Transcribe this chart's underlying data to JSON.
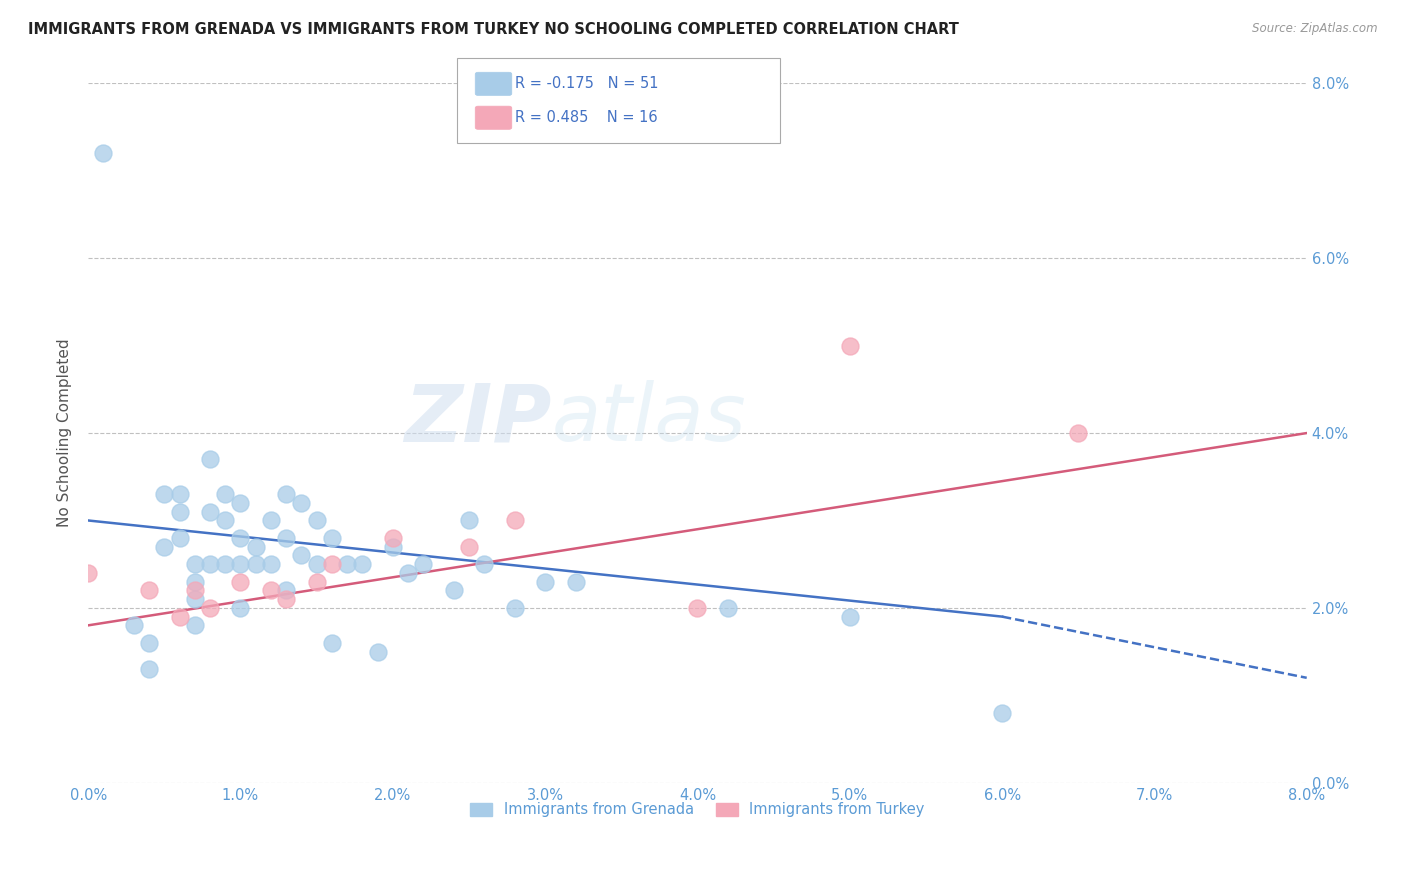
{
  "title": "IMMIGRANTS FROM GRENADA VS IMMIGRANTS FROM TURKEY NO SCHOOLING COMPLETED CORRELATION CHART",
  "source": "Source: ZipAtlas.com",
  "ylabel": "No Schooling Completed",
  "xlim": [
    0.0,
    0.08
  ],
  "ylim": [
    0.0,
    0.08
  ],
  "xticks": [
    0.0,
    0.01,
    0.02,
    0.03,
    0.04,
    0.05,
    0.06,
    0.07,
    0.08
  ],
  "yticks": [
    0.0,
    0.02,
    0.04,
    0.06,
    0.08
  ],
  "xtick_labels": [
    "0.0%",
    "1.0%",
    "2.0%",
    "3.0%",
    "4.0%",
    "5.0%",
    "6.0%",
    "7.0%",
    "8.0%"
  ],
  "ytick_labels": [
    "0.0%",
    "2.0%",
    "4.0%",
    "6.0%",
    "8.0%"
  ],
  "legend1_label": "Immigrants from Grenada",
  "legend2_label": "Immigrants from Turkey",
  "R_grenada": -0.175,
  "N_grenada": 51,
  "R_turkey": 0.485,
  "N_turkey": 16,
  "color_grenada": "#a8cce8",
  "color_turkey": "#f4a8b8",
  "color_trendline_grenada": "#4472c4",
  "color_trendline_turkey": "#d45b7a",
  "watermark_zip": "ZIP",
  "watermark_atlas": "atlas",
  "grenada_x": [
    0.001,
    0.003,
    0.004,
    0.004,
    0.005,
    0.005,
    0.006,
    0.006,
    0.006,
    0.007,
    0.007,
    0.007,
    0.007,
    0.008,
    0.008,
    0.008,
    0.009,
    0.009,
    0.009,
    0.01,
    0.01,
    0.01,
    0.01,
    0.011,
    0.011,
    0.012,
    0.012,
    0.013,
    0.013,
    0.013,
    0.014,
    0.014,
    0.015,
    0.015,
    0.016,
    0.016,
    0.017,
    0.018,
    0.019,
    0.02,
    0.021,
    0.022,
    0.024,
    0.025,
    0.026,
    0.028,
    0.03,
    0.032,
    0.042,
    0.05,
    0.06
  ],
  "grenada_y": [
    0.072,
    0.018,
    0.016,
    0.013,
    0.033,
    0.027,
    0.033,
    0.031,
    0.028,
    0.025,
    0.023,
    0.021,
    0.018,
    0.037,
    0.031,
    0.025,
    0.033,
    0.03,
    0.025,
    0.032,
    0.028,
    0.025,
    0.02,
    0.027,
    0.025,
    0.03,
    0.025,
    0.033,
    0.028,
    0.022,
    0.032,
    0.026,
    0.03,
    0.025,
    0.028,
    0.016,
    0.025,
    0.025,
    0.015,
    0.027,
    0.024,
    0.025,
    0.022,
    0.03,
    0.025,
    0.02,
    0.023,
    0.023,
    0.02,
    0.019,
    0.008
  ],
  "turkey_x": [
    0.0,
    0.004,
    0.006,
    0.007,
    0.008,
    0.01,
    0.012,
    0.013,
    0.015,
    0.016,
    0.02,
    0.025,
    0.028,
    0.04,
    0.05,
    0.065
  ],
  "turkey_y": [
    0.024,
    0.022,
    0.019,
    0.022,
    0.02,
    0.023,
    0.022,
    0.021,
    0.023,
    0.025,
    0.028,
    0.027,
    0.03,
    0.02,
    0.05,
    0.04
  ],
  "trendline_grenada_x0": 0.0,
  "trendline_grenada_x_solid_end": 0.06,
  "trendline_grenada_x_dash_end": 0.08,
  "trendline_grenada_y0": 0.03,
  "trendline_grenada_y_solid_end": 0.019,
  "trendline_grenada_y_dash_end": 0.012,
  "trendline_turkey_x0": 0.0,
  "trendline_turkey_x_end": 0.08,
  "trendline_turkey_y0": 0.018,
  "trendline_turkey_y_end": 0.04
}
